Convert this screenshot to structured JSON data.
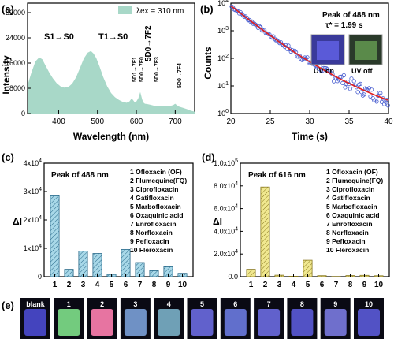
{
  "panel_labels": [
    "(a)",
    "(b)",
    "(c)",
    "(d)",
    "(e)"
  ],
  "colors": {
    "spectrum_fill": "#a8d8c8",
    "decay_points": "#4a5fd0",
    "decay_fit": "#e02020",
    "bars_c": "#a8d8e8",
    "bars_c_stroke": "#2a6a8a",
    "bars_d": "#f0e890",
    "bars_d_stroke": "#8a7a20"
  },
  "chart_data": [
    {
      "type": "area",
      "panel": "a",
      "xlabel": "Wavelength (nm)",
      "ylabel": "Intensity",
      "xlim": [
        320,
        750
      ],
      "ylim": [
        0,
        35000
      ],
      "xticks": [
        "400",
        "500",
        "600",
        "700"
      ],
      "yticks": [
        "0",
        "8000",
        "16000",
        "24000",
        "32000"
      ],
      "legend": "λex = 310 nm",
      "x": [
        320,
        330,
        340,
        350,
        358,
        365,
        375,
        385,
        395,
        405,
        415,
        425,
        435,
        445,
        455,
        465,
        475,
        483,
        490,
        497,
        505,
        515,
        525,
        535,
        545,
        555,
        565,
        575,
        582,
        588,
        592,
        596,
        600,
        605,
        610,
        615,
        618,
        622,
        628,
        635,
        645,
        655,
        665,
        675,
        685,
        695,
        700,
        705,
        710,
        715,
        720,
        730,
        740,
        750
      ],
      "y": [
        9000,
        13000,
        16500,
        17800,
        17200,
        15500,
        13200,
        11200,
        9600,
        8600,
        8200,
        8400,
        9500,
        11500,
        14500,
        17500,
        19300,
        19800,
        19000,
        17500,
        15000,
        11500,
        8600,
        6500,
        5200,
        4300,
        3700,
        3400,
        3800,
        4800,
        4200,
        3500,
        3800,
        4800,
        6800,
        4500,
        3500,
        3100,
        3000,
        2800,
        2500,
        2400,
        2300,
        2250,
        2350,
        2700,
        3100,
        2600,
        2200,
        2000,
        1800,
        1400,
        900,
        600
      ],
      "annotations": [
        "S1→S0",
        "T1→S0",
        "5D0→7F2",
        "5D1→7F1",
        "5D0→7F0",
        "5D0→7F3",
        "5D0→7F4"
      ]
    },
    {
      "type": "scatter",
      "panel": "b",
      "xlabel": "Time (s)",
      "ylabel": "Counts",
      "xlim": [
        20,
        40
      ],
      "ylim_log10": [
        0,
        4
      ],
      "xticks": [
        "20",
        "25",
        "30",
        "35",
        "40"
      ],
      "yticks": [
        "10^0",
        "10^1",
        "10^2",
        "10^3",
        "10^4"
      ],
      "scale": "log-y",
      "peak_text": "Peak of 488 nm",
      "tau_text": "τ* = 1.99 s",
      "inset_labels": [
        "UV on",
        "UV off"
      ],
      "fit": {
        "x": [
          20,
          22,
          24,
          26,
          28,
          30,
          32,
          34,
          36,
          38,
          40
        ],
        "y": [
          8000,
          2900,
          1080,
          420,
          170,
          75,
          35,
          17,
          9,
          5,
          3
        ]
      }
    },
    {
      "type": "bar",
      "panel": "c",
      "title": "Peak of 488 nm",
      "ylabel": "ΔI",
      "categories": [
        "1",
        "2",
        "3",
        "4",
        "5",
        "6",
        "7",
        "8",
        "9",
        "10"
      ],
      "values": [
        28500,
        2600,
        9000,
        8200,
        800,
        9600,
        5000,
        2100,
        3500,
        1200
      ],
      "ylim": [
        0,
        40000
      ],
      "yticks": [
        "0",
        "1x10^4",
        "2x10^4",
        "3x10^4",
        "4x10^4"
      ],
      "legend_items": [
        "1  Ofloxacin (OF)",
        "2  Flumequine(FQ)",
        "3  Ciprofloxacin",
        "4  Gatifloxacin",
        "5  Marbofloxacin",
        "6  Oxaquinic acid",
        "7  Enrofloxacin",
        "8  Norfloxacin",
        "9  Pefloxacin",
        "10 Fleroxacin"
      ]
    },
    {
      "type": "bar",
      "panel": "d",
      "title": "Peak of 616 nm",
      "ylabel": "ΔI",
      "categories": [
        "1",
        "2",
        "3",
        "4",
        "5",
        "6",
        "7",
        "8",
        "9",
        "10"
      ],
      "values": [
        6500,
        79000,
        1300,
        400,
        14500,
        900,
        200,
        1000,
        1200,
        800
      ],
      "ylim": [
        0,
        100000
      ],
      "yticks": [
        "0.0",
        "2.0x10^4",
        "4.0x10^4",
        "6.0x10^4",
        "8.0x10^4",
        "1.0x10^5"
      ],
      "legend_items": [
        "1  Ofloxacin (OF)",
        "2  Flumequine(FQ)",
        "3  Ciprofloxacin",
        "4  Gatifloxacin",
        "5  Marbofloxacin",
        "6  Oxaquinic acid",
        "7  Enrofloxacin",
        "8  Norfloxacin",
        "9  Pefloxacin",
        "10 Fleroxacin"
      ]
    }
  ],
  "photos": {
    "labels": [
      "blank",
      "1",
      "2",
      "3",
      "4",
      "5",
      "6",
      "7",
      "8",
      "9",
      "10"
    ],
    "colors": [
      "#4a4ad0",
      "#7ee08a",
      "#ff80b0",
      "#7aa0d8",
      "#7ab0c8",
      "#6a6ae0",
      "#6a7ae0",
      "#6a6ae0",
      "#5a5ad8",
      "#7a7ae0",
      "#5a5ad8"
    ]
  }
}
